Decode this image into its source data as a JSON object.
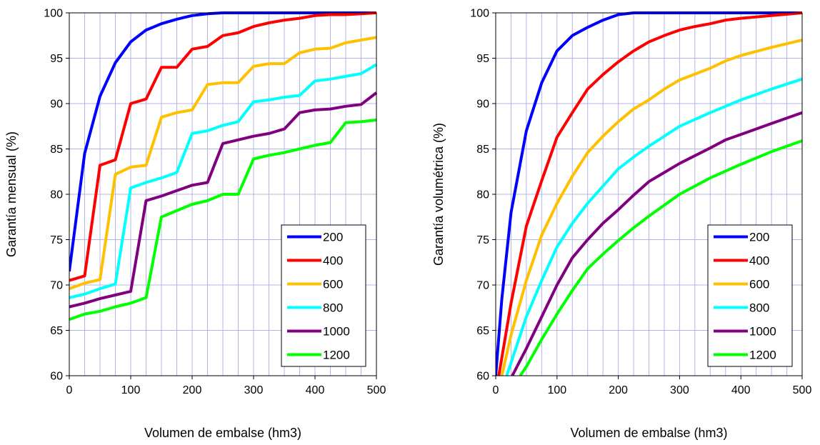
{
  "chart_data": [
    {
      "type": "line",
      "title": "",
      "xlabel": "Volumen de embalse (hm3)",
      "ylabel": "Garantía mensual (%)",
      "xlim": [
        0,
        500
      ],
      "ylim": [
        60,
        100
      ],
      "x_ticks": [
        0,
        100,
        200,
        300,
        400,
        500
      ],
      "y_ticks": [
        60,
        65,
        70,
        75,
        80,
        85,
        90,
        95,
        100
      ],
      "grid": true,
      "legend_position": "bottom-right",
      "x": [
        0,
        25,
        50,
        75,
        100,
        125,
        150,
        175,
        200,
        225,
        250,
        275,
        300,
        325,
        350,
        375,
        400,
        425,
        450,
        475,
        500
      ],
      "series": [
        {
          "name": "200",
          "color": "#0000ff",
          "values": [
            71.5,
            84.5,
            90.8,
            94.5,
            96.8,
            98.1,
            98.8,
            99.3,
            99.7,
            99.9,
            100,
            100,
            100,
            100,
            100,
            100,
            100,
            100,
            100,
            100,
            100
          ]
        },
        {
          "name": "400",
          "color": "#ff0000",
          "values": [
            70.5,
            71.0,
            83.2,
            83.8,
            90.0,
            90.5,
            94.0,
            94.0,
            96.0,
            96.3,
            97.5,
            97.8,
            98.5,
            98.9,
            99.2,
            99.4,
            99.7,
            99.8,
            99.8,
            99.9,
            100
          ]
        },
        {
          "name": "600",
          "color": "#ffc000",
          "values": [
            69.6,
            70.2,
            70.6,
            82.2,
            83.0,
            83.2,
            88.5,
            89.0,
            89.3,
            92.1,
            92.3,
            92.3,
            94.1,
            94.4,
            94.4,
            95.6,
            96.0,
            96.1,
            96.7,
            97.0,
            97.3
          ]
        },
        {
          "name": "800",
          "color": "#00ffff",
          "values": [
            68.6,
            69.0,
            69.6,
            70.1,
            80.7,
            81.3,
            81.8,
            82.4,
            86.7,
            87.0,
            87.6,
            88.0,
            90.2,
            90.4,
            90.7,
            90.9,
            92.5,
            92.7,
            93.0,
            93.3,
            94.3
          ]
        },
        {
          "name": "1000",
          "color": "#800080",
          "values": [
            67.6,
            68.0,
            68.5,
            68.9,
            69.3,
            79.3,
            79.8,
            80.4,
            81.0,
            81.3,
            85.6,
            86.0,
            86.4,
            86.7,
            87.2,
            89.0,
            89.3,
            89.4,
            89.7,
            89.9,
            91.2
          ]
        },
        {
          "name": "1200",
          "color": "#00ff00",
          "values": [
            66.2,
            66.8,
            67.1,
            67.6,
            68.0,
            68.6,
            77.5,
            78.2,
            78.9,
            79.3,
            80.0,
            80.0,
            83.9,
            84.3,
            84.6,
            85.0,
            85.4,
            85.7,
            87.9,
            88.0,
            88.2
          ]
        }
      ]
    },
    {
      "type": "line",
      "title": "",
      "xlabel": "Volumen de embalse (hm3)",
      "ylabel": "Garantía volumétrica (%)",
      "xlim": [
        0,
        500
      ],
      "ylim": [
        60,
        100
      ],
      "x_ticks": [
        0,
        100,
        200,
        300,
        400,
        500
      ],
      "y_ticks": [
        60,
        65,
        70,
        75,
        80,
        85,
        90,
        95,
        100
      ],
      "grid": true,
      "legend_position": "bottom-right",
      "series": [
        {
          "name": "200",
          "color": "#0000ff",
          "x": [
            0,
            10,
            25,
            50,
            75,
            100,
            125,
            150,
            175,
            200,
            225,
            250,
            300,
            350,
            400,
            450,
            500
          ],
          "values": [
            60,
            68.5,
            78.0,
            87.0,
            92.3,
            95.8,
            97.5,
            98.4,
            99.2,
            99.8,
            100,
            100,
            100,
            100,
            100,
            100,
            100
          ]
        },
        {
          "name": "400",
          "color": "#ff0000",
          "x": [
            5,
            25,
            50,
            75,
            100,
            125,
            150,
            175,
            200,
            225,
            250,
            275,
            300,
            325,
            350,
            375,
            400,
            450,
            500
          ],
          "values": [
            60,
            68.0,
            76.5,
            81.5,
            86.3,
            89.0,
            91.6,
            93.2,
            94.6,
            95.8,
            96.8,
            97.5,
            98.1,
            98.5,
            98.8,
            99.2,
            99.4,
            99.7,
            100
          ]
        },
        {
          "name": "600",
          "color": "#ffc000",
          "x": [
            10,
            25,
            50,
            75,
            100,
            125,
            150,
            175,
            200,
            225,
            250,
            275,
            300,
            350,
            375,
            400,
            450,
            500
          ],
          "values": [
            60,
            64.5,
            70.5,
            75.5,
            79.0,
            82.0,
            84.6,
            86.4,
            88.0,
            89.4,
            90.4,
            91.6,
            92.6,
            93.9,
            94.7,
            95.3,
            96.2,
            97.0
          ]
        },
        {
          "name": "800",
          "color": "#00ffff",
          "x": [
            18,
            50,
            75,
            100,
            125,
            150,
            175,
            200,
            225,
            250,
            275,
            300,
            350,
            400,
            450,
            500
          ],
          "values": [
            60,
            66.5,
            70.5,
            74.2,
            76.8,
            79.0,
            80.9,
            82.8,
            84.1,
            85.3,
            86.4,
            87.5,
            89.0,
            90.4,
            91.6,
            92.7
          ]
        },
        {
          "name": "1000",
          "color": "#800080",
          "x": [
            27,
            50,
            75,
            100,
            125,
            150,
            175,
            200,
            225,
            250,
            275,
            300,
            350,
            375,
            400,
            450,
            500
          ],
          "values": [
            60,
            63.0,
            66.5,
            70.0,
            73.0,
            75.0,
            76.8,
            78.3,
            79.9,
            81.4,
            82.4,
            83.4,
            85.1,
            86.0,
            86.6,
            87.8,
            89.0
          ]
        },
        {
          "name": "1200",
          "color": "#00ff00",
          "x": [
            40,
            50,
            75,
            100,
            125,
            150,
            175,
            200,
            225,
            250,
            275,
            300,
            350,
            400,
            450,
            500
          ],
          "values": [
            60,
            61.0,
            64.0,
            66.8,
            69.4,
            71.8,
            73.4,
            74.9,
            76.3,
            77.6,
            78.8,
            80.0,
            81.8,
            83.3,
            84.7,
            85.9
          ]
        }
      ]
    }
  ]
}
